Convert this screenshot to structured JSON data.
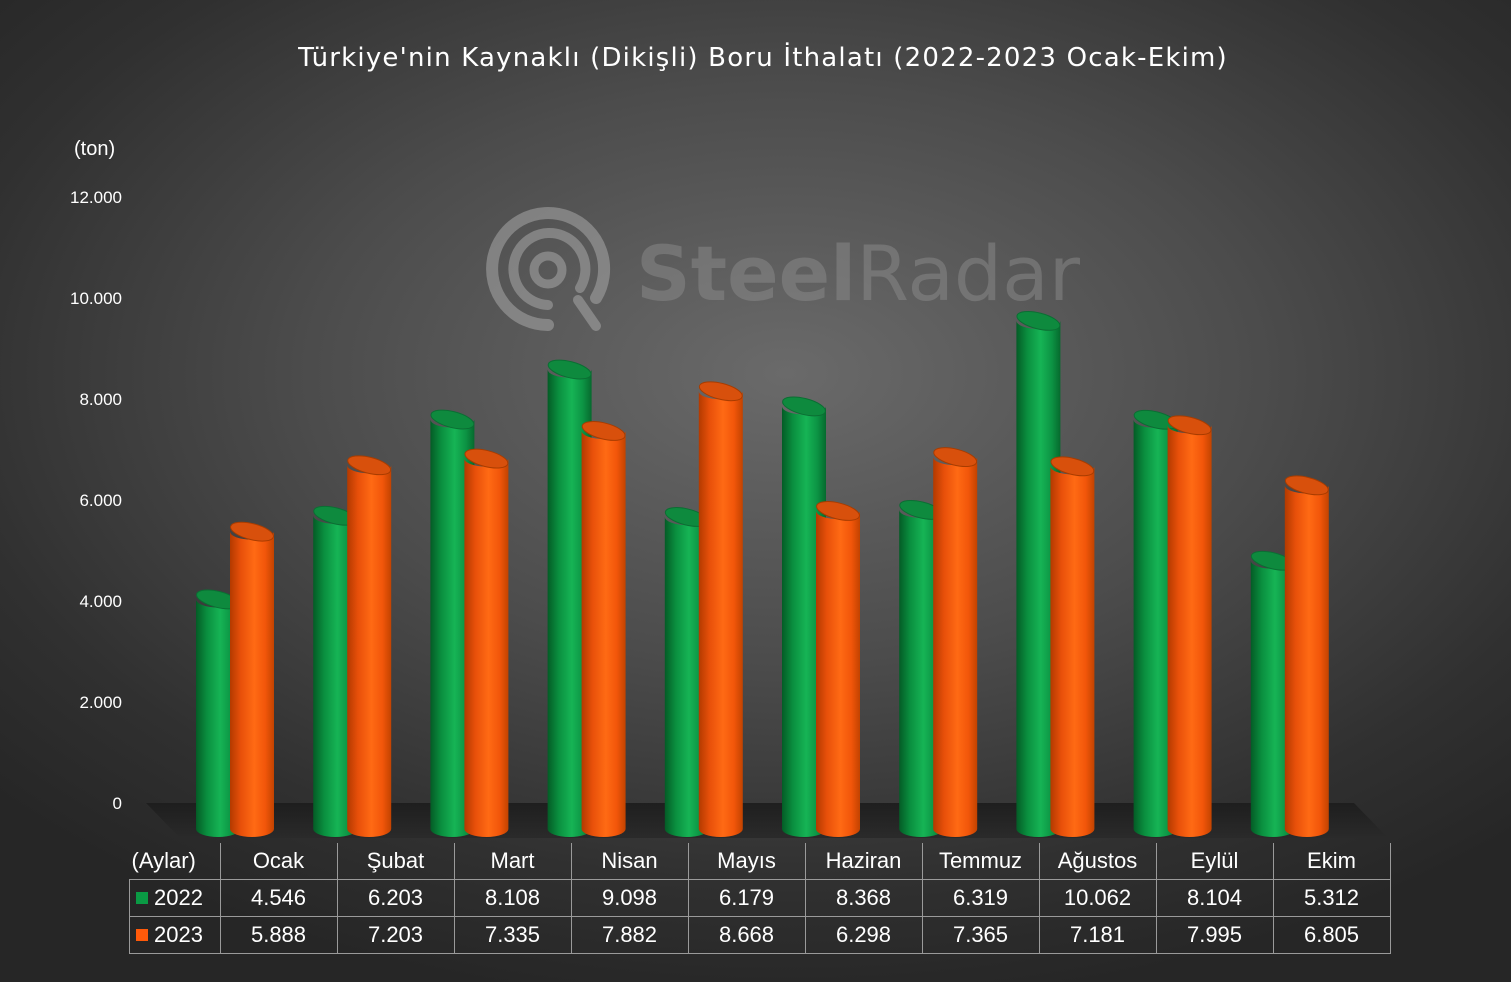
{
  "title": "Türkiye'nin Kaynaklı (Dikişli) Boru İthalatı (2022-2023 Ocak-Ekim)",
  "watermark": {
    "part1": "Steel",
    "part2": "Radar"
  },
  "colors": {
    "series_2022": "#0a9a44",
    "series_2023": "#ff5a0a",
    "text": "#ffffff"
  },
  "table": {
    "corner_label": "(Aylar)"
  },
  "chart_data": {
    "type": "bar",
    "title": "Türkiye'nin Kaynaklı (Dikişli) Boru İthalatı (2022-2023 Ocak-Ekim)",
    "ylabel": "(ton)",
    "xlabel": "(Aylar)",
    "ylim": [
      0,
      12000
    ],
    "yticks": [
      0,
      2000,
      4000,
      6000,
      8000,
      10000,
      12000
    ],
    "ytick_labels": [
      "0",
      "2.000",
      "4.000",
      "6.000",
      "8.000",
      "10.000",
      "12.000"
    ],
    "categories": [
      "Ocak",
      "Şubat",
      "Mart",
      "Nisan",
      "Mayıs",
      "Haziran",
      "Temmuz",
      "Ağustos",
      "Eylül",
      "Ekim"
    ],
    "series": [
      {
        "name": "2022",
        "color": "#0a9a44",
        "values": [
          4546,
          6203,
          8108,
          9098,
          6179,
          8368,
          6319,
          10062,
          8104,
          5312
        ],
        "labels": [
          "4.546",
          "6.203",
          "8.108",
          "9.098",
          "6.179",
          "8.368",
          "6.319",
          "10.062",
          "8.104",
          "5.312"
        ]
      },
      {
        "name": "2023",
        "color": "#ff5a0a",
        "values": [
          5888,
          7203,
          7335,
          7882,
          8668,
          6298,
          7365,
          7181,
          7995,
          6805
        ],
        "labels": [
          "5.888",
          "7.203",
          "7.335",
          "7.882",
          "8.668",
          "6.298",
          "7.365",
          "7.181",
          "7.995",
          "6.805"
        ]
      }
    ],
    "legend": "table"
  }
}
